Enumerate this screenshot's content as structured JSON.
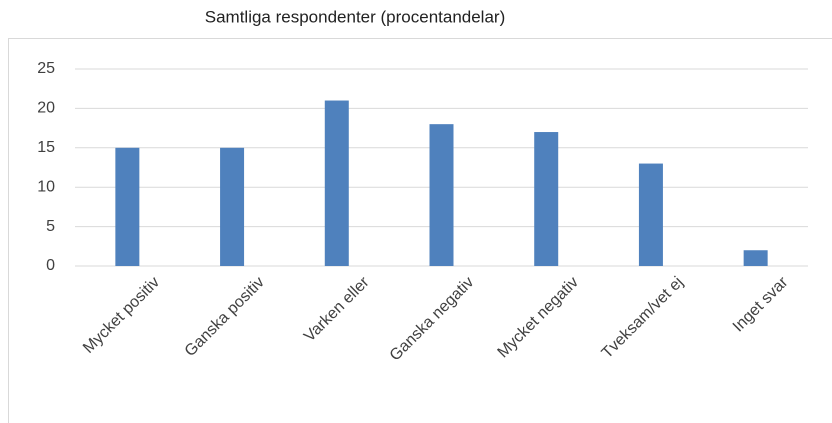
{
  "chart_data": {
    "type": "bar",
    "title": "Samtliga respondenter (procentandelar)",
    "categories": [
      "Mycket positiv",
      "Ganska positiv",
      "Varken eller",
      "Ganska negativ",
      "Mycket negativ",
      "Tveksam/vet ej",
      "Inget svar"
    ],
    "values": [
      15,
      15,
      21,
      18,
      17,
      13,
      2
    ],
    "color": "#4f81bd",
    "ylim": [
      0,
      25
    ],
    "yticks": [
      0,
      5,
      10,
      15,
      20,
      25
    ],
    "grid": true
  }
}
